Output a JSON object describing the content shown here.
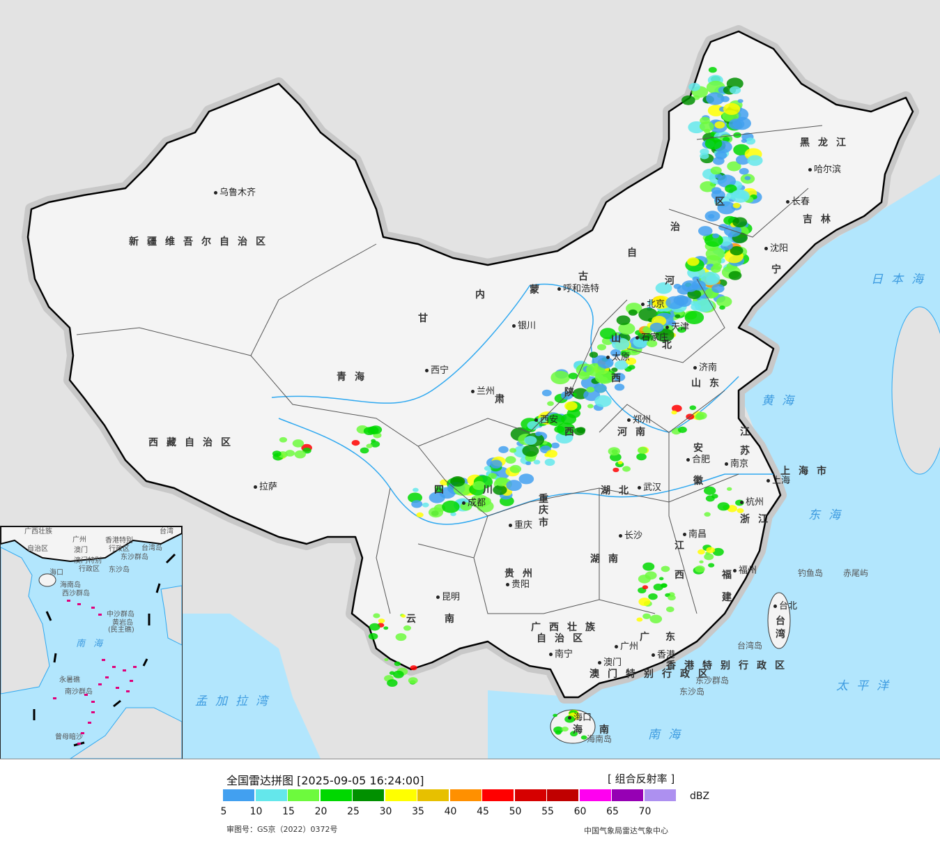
{
  "legend": {
    "title": "全国雷达拼图 [2025-09-05 16:24:00]",
    "product": "[ 组合反射率 ]",
    "unit": "dBZ",
    "colors": [
      "#42a0f0",
      "#64e7eb",
      "#6dfa3d",
      "#00d800",
      "#019000",
      "#ffff00",
      "#e7c000",
      "#ff9000",
      "#ff0000",
      "#d60000",
      "#c00000",
      "#ff00f0",
      "#9600b4",
      "#ad90f0"
    ],
    "ticks": [
      "5",
      "10",
      "15",
      "20",
      "25",
      "30",
      "35",
      "40",
      "45",
      "50",
      "55",
      "60",
      "65",
      "70"
    ],
    "approval_number": "审图号：GS京（2022）0372号",
    "credit": "中国气象局雷达气象中心"
  },
  "map": {
    "colors": {
      "sea": "#b2e6fd",
      "land_outside": "#e3e3e3",
      "china_land": "#f4f4f4",
      "border": "#000000",
      "river": "#2ea8f0"
    },
    "provinces": [
      "新疆维吾尔自治区",
      "西藏自治区",
      "青海",
      "甘",
      "肃",
      "内",
      "蒙",
      "古",
      "自",
      "治",
      "区",
      "黑龙江",
      "吉林",
      "宁",
      "河",
      "北",
      "山",
      "西",
      "山东",
      "陕",
      "西",
      "河南",
      "江",
      "苏",
      "安",
      "徽",
      "湖北",
      "重",
      "庆",
      "市",
      "四",
      "川",
      "浙江",
      "江",
      "西",
      "湖南",
      "贵州",
      "福",
      "建",
      "云",
      "南",
      "广西壮族",
      "自治区",
      "广",
      "东",
      "海",
      "南",
      "上海市",
      "台",
      "湾",
      "香港特别行政区",
      "澳门特别行政区"
    ],
    "cities": [
      "乌鲁木齐",
      "拉萨",
      "西宁",
      "兰州",
      "银川",
      "呼和浩特",
      "北京",
      "天津",
      "石家庄",
      "太原",
      "济南",
      "郑州",
      "西安",
      "成都",
      "重庆",
      "武汉",
      "合肥",
      "南京",
      "上海",
      "杭州",
      "南昌",
      "长沙",
      "福州",
      "贵阳",
      "昆明",
      "南宁",
      "广州",
      "香港",
      "澳门",
      "海口",
      "台北",
      "沈阳",
      "长春",
      "哈尔滨"
    ],
    "seas": [
      "日本海",
      "黄海",
      "东海",
      "太平洋",
      "南海",
      "孟加拉湾"
    ],
    "others": [
      "钓鱼岛",
      "赤尾屿",
      "台湾岛",
      "东沙群岛",
      "东沙岛",
      "海南岛"
    ]
  },
  "inset": {
    "labels": [
      "广西壮族",
      "自治区",
      "广州",
      "澳门",
      "香港特别",
      "行政区",
      "澳门特别",
      "行政区",
      "台湾",
      "台湾岛",
      "东沙群岛",
      "东沙岛",
      "海口",
      "海南岛",
      "西沙群岛",
      "中沙群岛",
      "黄岩岛",
      "(民主礁)",
      "永暑礁",
      "南沙群岛",
      "曾母暗沙"
    ],
    "sea": "南海"
  }
}
